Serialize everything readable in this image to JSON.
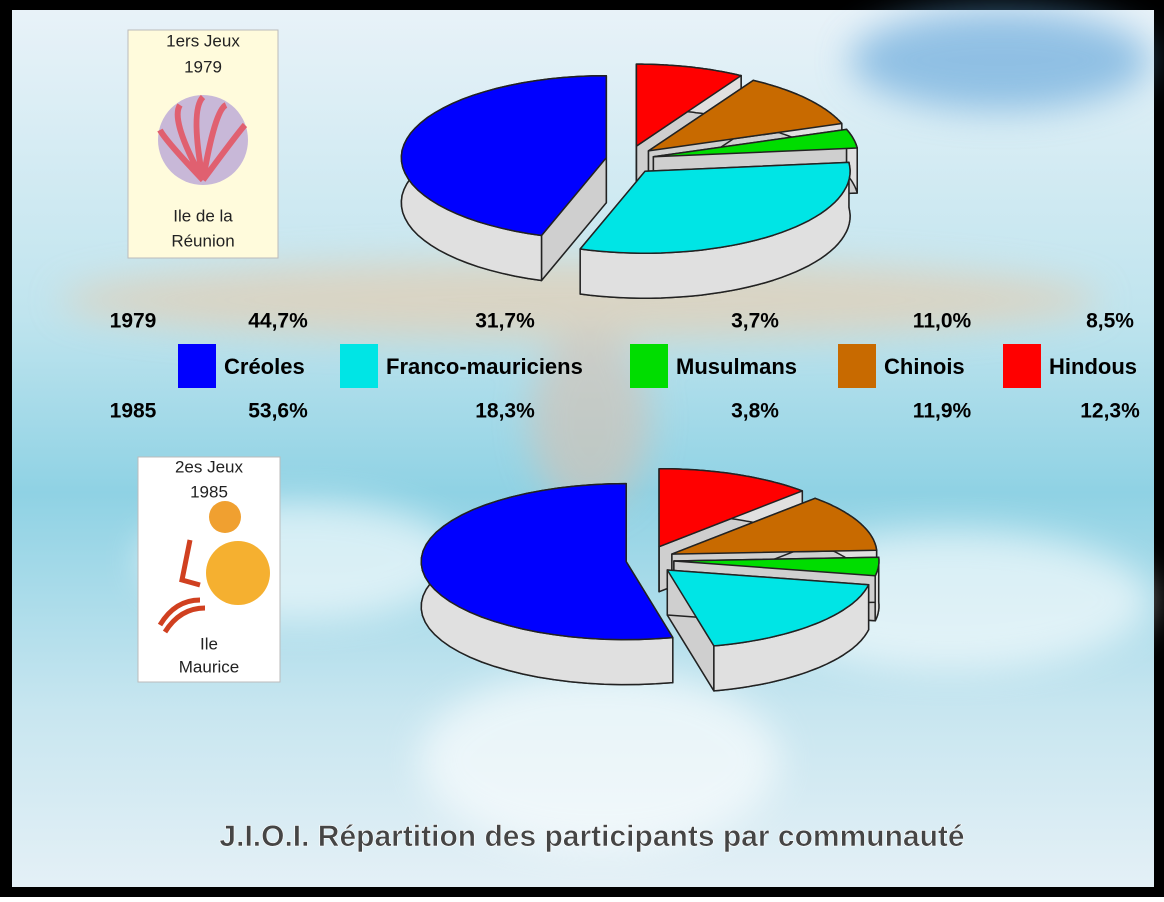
{
  "title": "J.I.O.I. Répartition des participants par communauté",
  "chart_data": [
    {
      "type": "pie",
      "row_label": "1979",
      "logo": {
        "line1": "1ers Jeux",
        "line2": "1979",
        "line3": "Ile de la",
        "line4": "Réunion"
      },
      "categories": [
        "Créoles",
        "Franco-mauriciens",
        "Musulmans",
        "Chinois",
        "Hindous"
      ],
      "colors": [
        "#0000ff",
        "#00e5e5",
        "#00dd00",
        "#c86a00",
        "#ff0000"
      ],
      "values": [
        44.7,
        31.7,
        3.7,
        11.0,
        8.5
      ],
      "value_labels": [
        "44,7%",
        "31,7%",
        "3,7%",
        "11,0%",
        "8,5%"
      ]
    },
    {
      "type": "pie",
      "row_label": "1985",
      "logo": {
        "line1": "2es Jeux",
        "line2": "1985",
        "line3": "Ile",
        "line4": "Maurice"
      },
      "categories": [
        "Créoles",
        "Franco-mauriciens",
        "Musulmans",
        "Chinois",
        "Hindous"
      ],
      "colors": [
        "#0000ff",
        "#00e5e5",
        "#00dd00",
        "#c86a00",
        "#ff0000"
      ],
      "values": [
        53.6,
        18.3,
        3.8,
        11.9,
        12.3
      ],
      "value_labels": [
        "53,6%",
        "18,3%",
        "3,8%",
        "11,9%",
        "12,3%"
      ]
    }
  ]
}
